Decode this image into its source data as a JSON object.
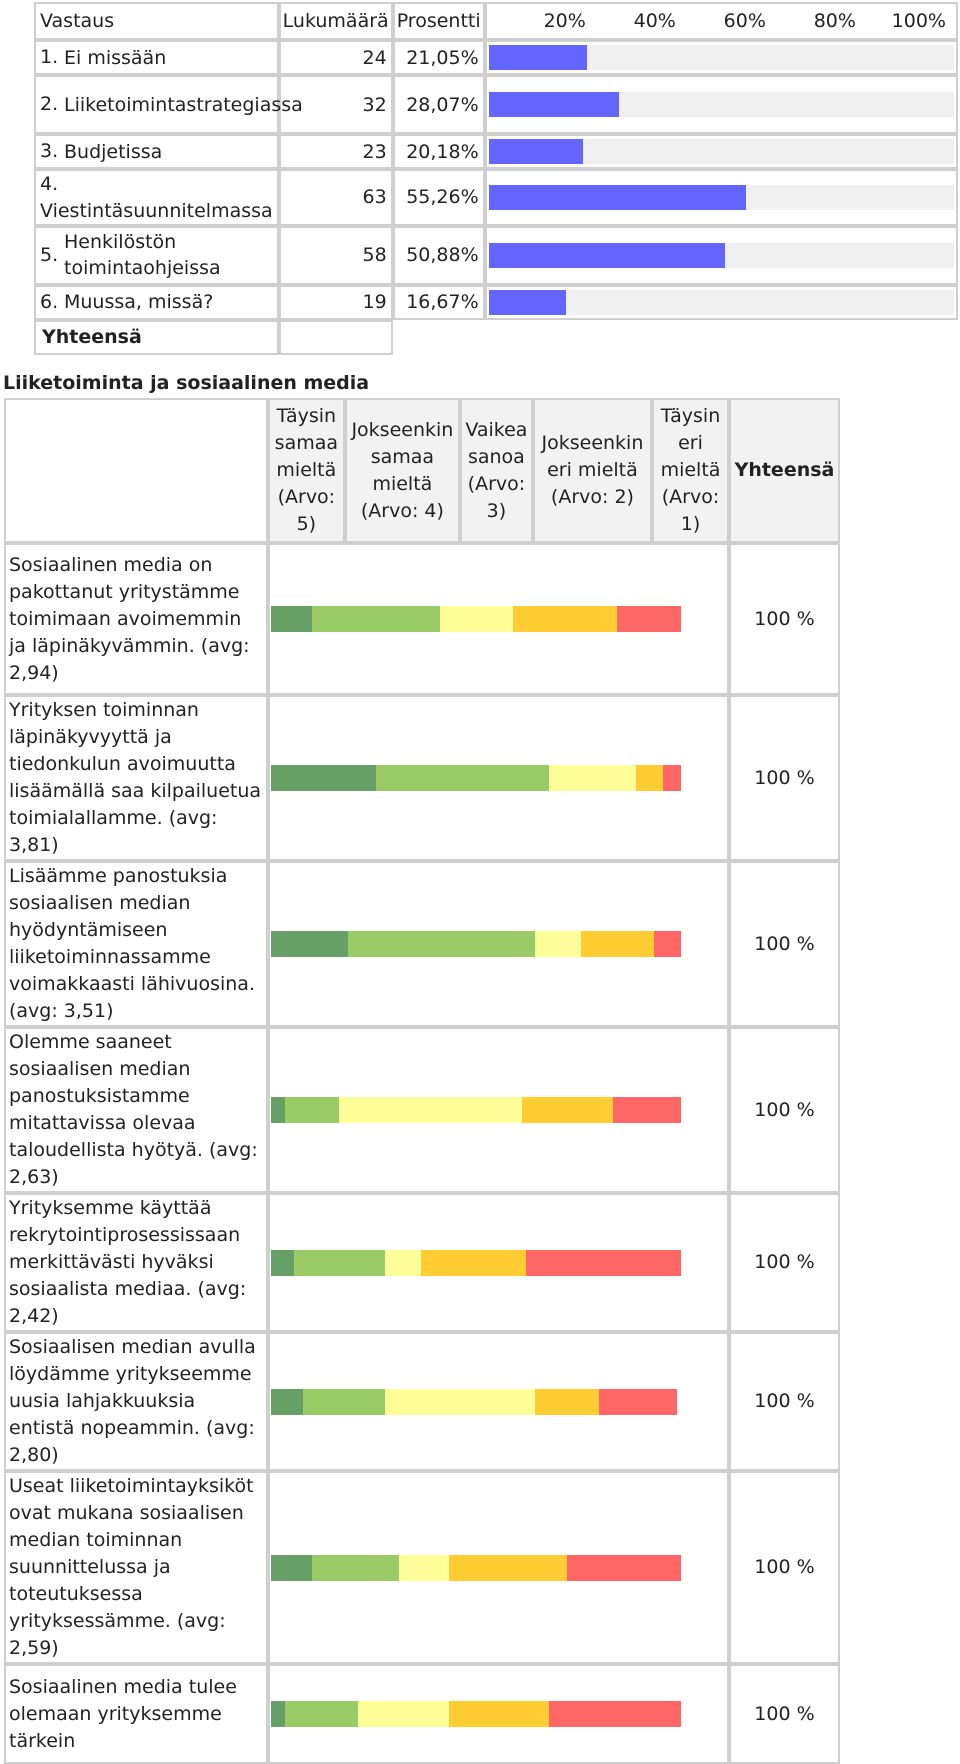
{
  "table1": {
    "headers": {
      "vastaus": "Vastaus",
      "lukumaara": "Lukumäärä",
      "prosentti": "Prosentti",
      "scale": [
        "20%",
        "40%",
        "60%",
        "80%",
        "100%"
      ]
    },
    "rows": [
      {
        "idx": "1.",
        "label": "Ei missään",
        "count": "24",
        "percent": "21,05%",
        "fraction": 0.2105
      },
      {
        "idx": "2.",
        "label": "Liiketoimintastrategiassa",
        "count": "32",
        "percent": "28,07%",
        "fraction": 0.2807
      },
      {
        "idx": "3.",
        "label": "Budjetissa",
        "count": "23",
        "percent": "20,18%",
        "fraction": 0.2018
      },
      {
        "idx": "4.",
        "label": "Viestintäsuunnitelmassa",
        "count": "63",
        "percent": "55,26%",
        "fraction": 0.5526
      },
      {
        "idx": "5.",
        "label": "Henkilöstön toimintaohjeissa",
        "count": "58",
        "percent": "50,88%",
        "fraction": 0.5088
      },
      {
        "idx": "6.",
        "label": "Muussa, missä?",
        "count": "19",
        "percent": "16,67%",
        "fraction": 0.1667
      }
    ],
    "total_label": "Yhteensä",
    "bar_color": "#6464ff"
  },
  "section_title": "Liiketoiminta ja sosiaalinen media",
  "table2": {
    "headers": [
      "Täysin samaa mieltä (Arvo: 5)",
      "Jokseenkin samaa mieltä (Arvo: 4)",
      "Vaikea sanoa (Arvo: 3)",
      "Jokseenkin eri mieltä (Arvo: 2)",
      "Täysin eri mieltä (Arvo: 1)",
      "Yhteensä"
    ],
    "colors": [
      "#66a066",
      "#99cc66",
      "#ffff99",
      "#ffcc33",
      "#ff6666"
    ],
    "rows": [
      {
        "question": "Sosiaalinen media on pakottanut yritystämme toimimaan avoimemmin ja läpinäkyvämmin. (avg: 2,94)",
        "shares": [
          0.09,
          0.28,
          0.16,
          0.23,
          0.14
        ],
        "total": "100 %"
      },
      {
        "question": "Yrityksen toiminnan läpinäkyvyyttä ja tiedonkulun avoimuutta lisäämällä saa kilpailuetua toimialallamme. (avg: 3,81)",
        "shares": [
          0.23,
          0.38,
          0.19,
          0.06,
          0.04
        ],
        "total": "100 %"
      },
      {
        "question": "Lisäämme panostuksia sosiaalisen median hyödyntämiseen liiketoiminnassamme voimakkaasti lähivuosina. (avg: 3,51)",
        "shares": [
          0.17,
          0.41,
          0.1,
          0.16,
          0.06
        ],
        "total": "100 %"
      },
      {
        "question": "Olemme saaneet sosiaalisen median panostuksistamme mitattavissa olevaa taloudellista hyötyä. (avg: 2,63)",
        "shares": [
          0.03,
          0.12,
          0.4,
          0.2,
          0.15
        ],
        "total": "100 %"
      },
      {
        "question": "Yrityksemme käyttää rekrytointiprosessissaan merkittävästi hyväksi sosiaalista mediaa. (avg: 2,42)",
        "shares": [
          0.05,
          0.2,
          0.08,
          0.23,
          0.34
        ],
        "total": "100 %"
      },
      {
        "question": "Sosiaalisen median avulla löydämme yritykseemme uusia lahjakkuuksia entistä nopeammin. (avg: 2,80)",
        "shares": [
          0.07,
          0.18,
          0.33,
          0.14,
          0.17
        ],
        "total": "100 %"
      },
      {
        "question": "Useat liiketoimintayksiköt ovat mukana sosiaalisen median toiminnan suunnittelussa ja toteutuksessa yrityksessämme. (avg: 2,59)",
        "shares": [
          0.09,
          0.19,
          0.11,
          0.26,
          0.25
        ],
        "total": "100 %"
      },
      {
        "question": "Sosiaalinen media tulee olemaan yrityksemme tärkein",
        "shares": [
          0.03,
          0.16,
          0.2,
          0.22,
          0.29
        ],
        "total": "100 %"
      }
    ]
  }
}
